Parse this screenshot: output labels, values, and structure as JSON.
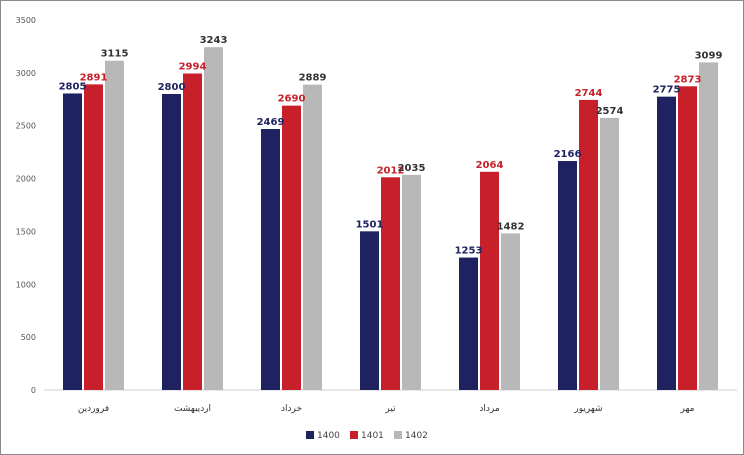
{
  "chart_data": {
    "type": "bar",
    "title": "",
    "xlabel": "",
    "ylabel": "",
    "ylim": [
      0,
      3500
    ],
    "yticks": [
      0,
      500,
      1000,
      1500,
      2000,
      2500,
      3000,
      3500
    ],
    "grid": false,
    "legend_position": "bottom",
    "categories": [
      "فروردین",
      "اردیبهشت",
      "خرداد",
      "تیر",
      "مرداد",
      "شهریور",
      "مهر"
    ],
    "series": [
      {
        "name": "1400",
        "color": "#1f2260",
        "label_color": "#1f2260",
        "values": [
          2805,
          2800,
          2469,
          1501,
          1253,
          2166,
          2775
        ]
      },
      {
        "name": "1401",
        "color": "#c8202a",
        "label_color": "#c8202a",
        "values": [
          2891,
          2994,
          2690,
          2012,
          2064,
          2744,
          2873
        ]
      },
      {
        "name": "1402",
        "color": "#b8b8b8",
        "label_color": "#333333",
        "values": [
          3115,
          3243,
          2889,
          2035,
          1482,
          2574,
          3099
        ]
      }
    ]
  }
}
